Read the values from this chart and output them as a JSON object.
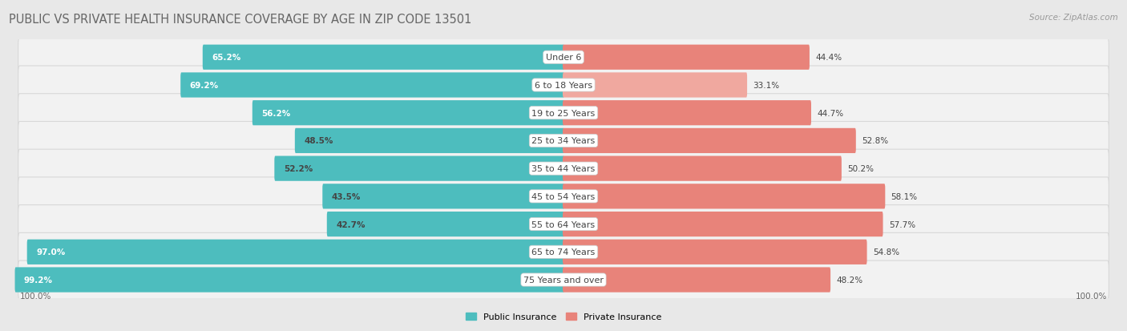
{
  "title": "PUBLIC VS PRIVATE HEALTH INSURANCE COVERAGE BY AGE IN ZIP CODE 13501",
  "source": "Source: ZipAtlas.com",
  "categories": [
    "Under 6",
    "6 to 18 Years",
    "19 to 25 Years",
    "25 to 34 Years",
    "35 to 44 Years",
    "45 to 54 Years",
    "55 to 64 Years",
    "65 to 74 Years",
    "75 Years and over"
  ],
  "public_values": [
    65.2,
    69.2,
    56.2,
    48.5,
    52.2,
    43.5,
    42.7,
    97.0,
    99.2
  ],
  "private_values": [
    44.4,
    33.1,
    44.7,
    52.8,
    50.2,
    58.1,
    57.7,
    54.8,
    48.2
  ],
  "public_color": "#4dbdbe",
  "private_color": "#e8837a",
  "private_color_light": "#f0a89f",
  "public_label": "Public Insurance",
  "private_label": "Private Insurance",
  "bg_color": "#e8e8e8",
  "row_bg_color": "#f2f2f2",
  "row_border_color": "#d8d8d8",
  "max_value": 100.0,
  "title_fontsize": 10.5,
  "label_fontsize": 8.0,
  "value_fontsize": 7.5,
  "source_fontsize": 7.5,
  "axis_label_fontsize": 7.5
}
